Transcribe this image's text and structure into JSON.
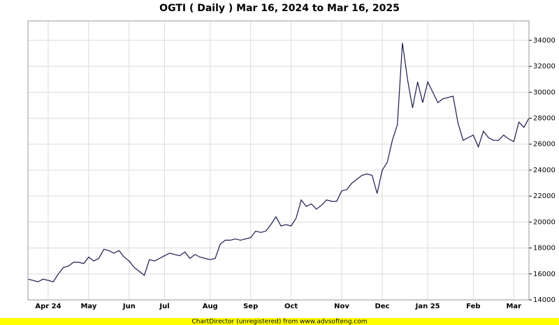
{
  "chart_data": {
    "type": "line",
    "title": "OGTI ( Daily ) Mar 16, 2024 to Mar 16, 2025",
    "footer": "ChartDirector (unregistered) from www.advsofteng.com",
    "categories": [
      null,
      null,
      null,
      null,
      "Apr 24",
      null,
      null,
      null,
      null,
      null,
      null,
      null,
      "May",
      null,
      null,
      null,
      null,
      null,
      null,
      null,
      "Jun",
      null,
      null,
      null,
      null,
      null,
      null,
      "Jul",
      null,
      null,
      null,
      null,
      null,
      null,
      null,
      null,
      "Aug",
      null,
      null,
      null,
      null,
      null,
      null,
      null,
      "Sep",
      null,
      null,
      null,
      null,
      null,
      null,
      null,
      "Oct",
      null,
      null,
      null,
      null,
      null,
      null,
      null,
      null,
      null,
      "Nov",
      null,
      null,
      null,
      null,
      null,
      null,
      null,
      "Dec",
      null,
      null,
      null,
      null,
      null,
      null,
      null,
      null,
      "Jan 25",
      null,
      null,
      null,
      null,
      null,
      null,
      null,
      null,
      "Feb",
      null,
      null,
      null,
      null,
      null,
      null,
      null,
      "Mar",
      null,
      null,
      null
    ],
    "series": [
      {
        "color": "#1a1a4d",
        "values": [
          15600,
          15500,
          15400,
          15600,
          15500,
          15400,
          16000,
          16500,
          16600,
          16900,
          16900,
          16800,
          17300,
          17000,
          17200,
          17900,
          17800,
          17600,
          17800,
          17300,
          17000,
          16500,
          16200,
          15900,
          17100,
          17000,
          17200,
          17400,
          17600,
          17500,
          17400,
          17700,
          17200,
          17500,
          17300,
          17200,
          17100,
          17200,
          18300,
          18600,
          18600,
          18700,
          18600,
          18700,
          18800,
          19300,
          19200,
          19300,
          19800,
          20400,
          19700,
          19800,
          19700,
          20300,
          21700,
          21200,
          21400,
          21000,
          21300,
          21700,
          21600,
          21600,
          22400,
          22500,
          23000,
          23300,
          23600,
          23700,
          23600,
          22200,
          24000,
          24600,
          26300,
          27500,
          33800,
          31000,
          28800,
          30800,
          29200,
          30800,
          30000,
          29200,
          29500,
          29600,
          29700,
          27600,
          26300,
          26500,
          26700,
          25800,
          27000,
          26500,
          26300,
          26300,
          26700,
          26400,
          26200,
          27700,
          27300,
          28000
        ]
      }
    ],
    "ylim": [
      14000,
      35500
    ],
    "yticks": [
      14000,
      16000,
      18000,
      20000,
      22000,
      24000,
      26000,
      28000,
      30000,
      32000,
      34000
    ],
    "grid": true
  }
}
